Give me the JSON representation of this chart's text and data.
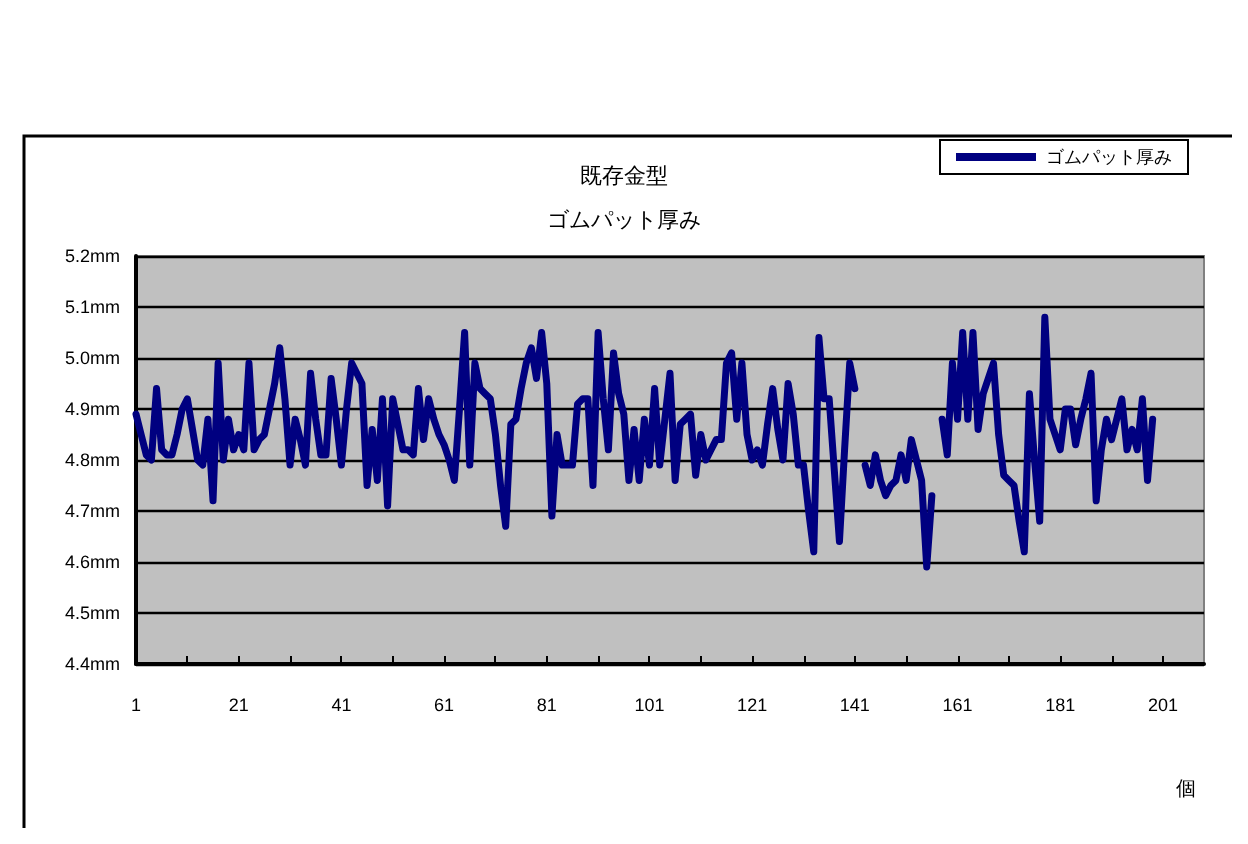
{
  "chart_data": {
    "type": "line",
    "title": "既存金型",
    "subtitle": "ゴムパット厚み",
    "xlabel": "個",
    "x": [
      1,
      2,
      3,
      4,
      5,
      6,
      7,
      8,
      9,
      10,
      11,
      12,
      13,
      14,
      15,
      16,
      17,
      18,
      19,
      20,
      21,
      22,
      23,
      24,
      25,
      26,
      27,
      28,
      29,
      30,
      31,
      32,
      33,
      34,
      35,
      36,
      37,
      38,
      39,
      40,
      41,
      42,
      43,
      44,
      45,
      46,
      47,
      48,
      49,
      50,
      51,
      52,
      53,
      54,
      55,
      56,
      57,
      58,
      59,
      60,
      61,
      62,
      63,
      64,
      65,
      66,
      67,
      68,
      69,
      70,
      71,
      72,
      73,
      74,
      75,
      76,
      77,
      78,
      79,
      80,
      81,
      82,
      83,
      84,
      85,
      86,
      87,
      88,
      89,
      90,
      91,
      92,
      93,
      94,
      95,
      96,
      97,
      98,
      99,
      100,
      101,
      102,
      103,
      104,
      105,
      106,
      107,
      108,
      109,
      110,
      111,
      112,
      113,
      114,
      115,
      116,
      117,
      118,
      119,
      120,
      121,
      122,
      123,
      124,
      125,
      126,
      127,
      128,
      129,
      130,
      131,
      132,
      133,
      134,
      135,
      136,
      137,
      138,
      139,
      140,
      141,
      142,
      143,
      144,
      145,
      146,
      147,
      148,
      149,
      150,
      151,
      152,
      153,
      154,
      155,
      156,
      157,
      158,
      159,
      160,
      161,
      162,
      163,
      164,
      165,
      166,
      167,
      168,
      169,
      170,
      171,
      172,
      173,
      174,
      175,
      176,
      177,
      178,
      179,
      180,
      181,
      182,
      183,
      184,
      185,
      186,
      187,
      188,
      189,
      190,
      191,
      192,
      193,
      194,
      195,
      196,
      197,
      198,
      199
    ],
    "series": [
      {
        "name": "ゴムパット厚み",
        "color": "#000080",
        "values": [
          4.89,
          4.85,
          4.81,
          4.8,
          4.94,
          4.82,
          4.81,
          4.81,
          4.85,
          4.9,
          4.92,
          4.86,
          4.8,
          4.79,
          4.88,
          4.72,
          4.99,
          4.8,
          4.88,
          4.82,
          4.85,
          4.82,
          4.99,
          4.82,
          4.84,
          4.85,
          4.9,
          4.95,
          5.02,
          4.92,
          4.79,
          4.88,
          4.84,
          4.79,
          4.97,
          4.88,
          4.81,
          4.81,
          4.96,
          4.88,
          4.79,
          4.9,
          4.99,
          4.97,
          4.95,
          4.75,
          4.86,
          4.76,
          4.92,
          4.71,
          4.92,
          4.87,
          4.82,
          4.82,
          4.81,
          4.94,
          4.84,
          4.92,
          4.88,
          4.85,
          4.83,
          4.8,
          4.76,
          4.9,
          5.05,
          4.79,
          4.99,
          4.94,
          4.93,
          4.92,
          4.85,
          4.75,
          4.67,
          4.87,
          4.88,
          4.94,
          4.99,
          5.02,
          4.96,
          5.05,
          4.95,
          4.69,
          4.85,
          4.79,
          4.79,
          4.79,
          4.91,
          4.92,
          4.92,
          4.75,
          5.05,
          4.92,
          4.82,
          5.01,
          4.93,
          4.89,
          4.76,
          4.86,
          4.76,
          4.88,
          4.79,
          4.94,
          4.79,
          4.88,
          4.97,
          4.76,
          4.87,
          4.88,
          4.89,
          4.77,
          4.85,
          4.8,
          4.82,
          4.84,
          4.84,
          4.99,
          5.01,
          4.88,
          4.99,
          4.85,
          4.8,
          4.82,
          4.79,
          4.87,
          4.94,
          4.86,
          4.8,
          4.95,
          4.89,
          4.79,
          4.79,
          4.7,
          4.62,
          5.04,
          4.92,
          4.92,
          4.78,
          4.64,
          4.82,
          4.99,
          4.94,
          null,
          4.79,
          4.75,
          4.81,
          4.76,
          4.73,
          4.75,
          4.76,
          4.81,
          4.76,
          4.84,
          4.8,
          4.76,
          4.59,
          4.73,
          null,
          4.88,
          4.81,
          4.99,
          4.88,
          5.05,
          4.88,
          5.05,
          4.86,
          4.93,
          4.96,
          4.99,
          4.85,
          4.77,
          4.76,
          4.75,
          4.68,
          4.62,
          4.93,
          4.8,
          4.68,
          5.08,
          4.88,
          4.85,
          4.82,
          4.9,
          4.9,
          4.83,
          4.88,
          4.92,
          4.97,
          4.72,
          4.82,
          4.88,
          4.84,
          4.88,
          4.92,
          4.82,
          4.86,
          4.82,
          4.92,
          4.76,
          4.88
        ]
      }
    ],
    "xlim": [
      1,
      209
    ],
    "xticks": [
      1,
      {
        "value": 11,
        "label": null
      },
      21,
      {
        "value": 31,
        "label": null
      },
      41,
      {
        "value": 51,
        "label": null
      },
      61,
      {
        "value": 71,
        "label": null
      },
      81,
      {
        "value": 91,
        "label": null
      },
      101,
      {
        "value": 111,
        "label": null
      },
      121,
      {
        "value": 131,
        "label": null
      },
      141,
      {
        "value": 151,
        "label": null
      },
      161,
      {
        "value": 171,
        "label": null
      },
      181,
      {
        "value": 191,
        "label": null
      },
      201
    ],
    "ylim": [
      4.4,
      5.2
    ],
    "yticks": [
      {
        "value": 4.4,
        "label": "4.4mm"
      },
      {
        "value": 4.5,
        "label": "4.5mm"
      },
      {
        "value": 4.6,
        "label": "4.6mm"
      },
      {
        "value": 4.7,
        "label": "4.7mm"
      },
      {
        "value": 4.8,
        "label": "4.8mm"
      },
      {
        "value": 4.9,
        "label": "4.9mm"
      },
      {
        "value": 5.0,
        "label": "5.0mm"
      },
      {
        "value": 5.1,
        "label": "5.1mm"
      },
      {
        "value": 5.2,
        "label": "5.2mm"
      }
    ],
    "grid": "y",
    "legend": "top right",
    "marker": "none",
    "line_style": "solid"
  }
}
